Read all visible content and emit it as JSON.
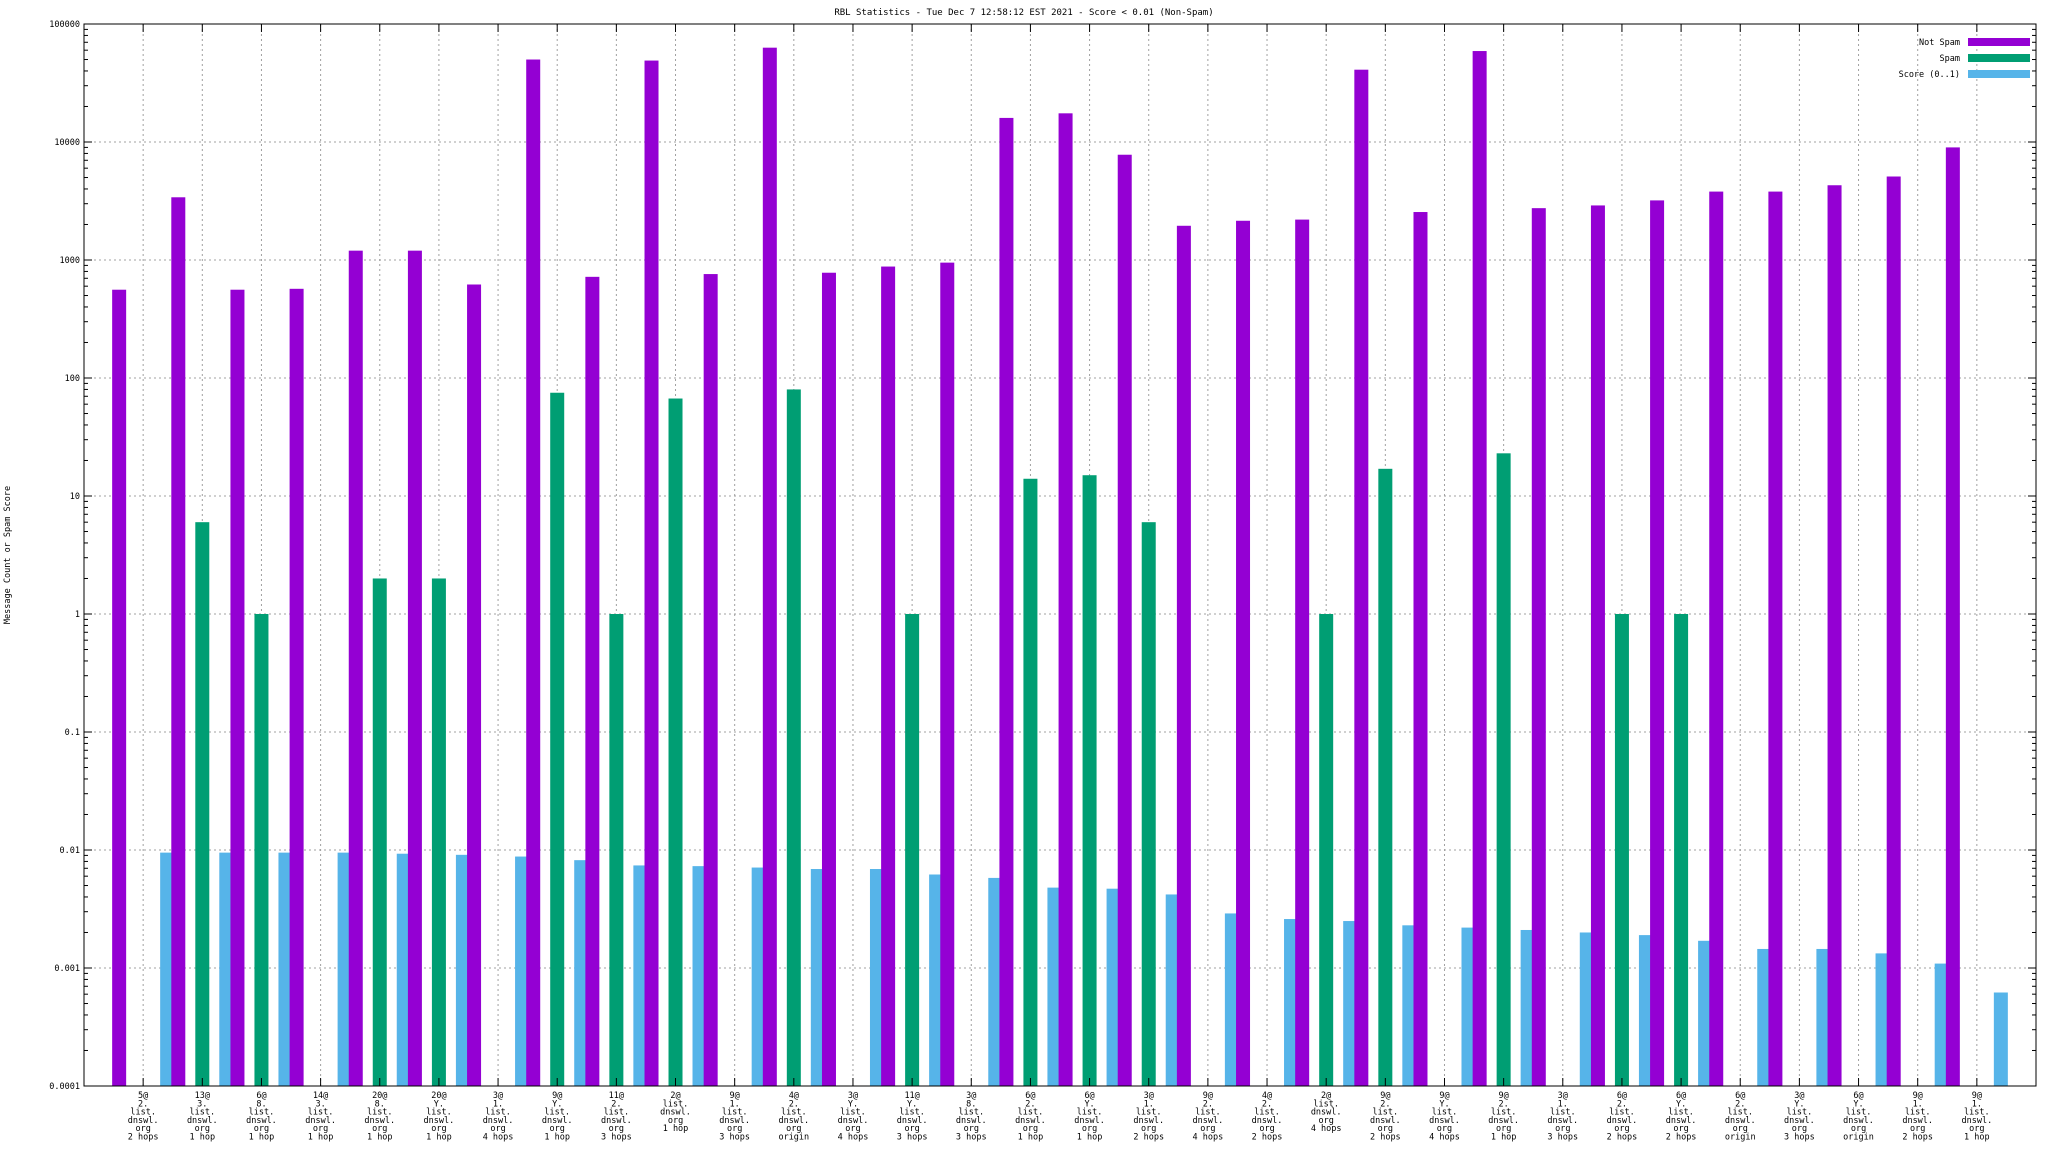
{
  "chart_data": {
    "type": "bar",
    "title": "RBL Statistics - Tue Dec  7 12:58:12 EST 2021 - Score < 0.01 (Non-Spam)",
    "xlabel": "",
    "ylabel": "Message Count or Spam Score",
    "yscale": "log",
    "ylim": [
      0.0001,
      100000
    ],
    "yticks": [
      "0.0001",
      "0.001",
      "0.01",
      "0.1",
      "1",
      "10",
      "100",
      "1000",
      "10000",
      "100000"
    ],
    "grid": true,
    "legend_position": "top-right",
    "categories": [
      [
        "5@",
        "2.",
        "list.",
        "dnswl.",
        "org",
        "2 hops"
      ],
      [
        "13@",
        "3.",
        "list.",
        "dnswl.",
        "org",
        "1 hop"
      ],
      [
        "6@",
        "8.",
        "list.",
        "dnswl.",
        "org",
        "1 hop"
      ],
      [
        "14@",
        "3.",
        "list.",
        "dnswl.",
        "org",
        "1 hop"
      ],
      [
        "20@",
        "8.",
        "list.",
        "dnswl.",
        "org",
        "1 hop"
      ],
      [
        "20@",
        "Y.",
        "list.",
        "dnswl.",
        "org",
        "1 hop"
      ],
      [
        "3@",
        "1.",
        "list.",
        "dnswl.",
        "org",
        "4 hops"
      ],
      [
        "9@",
        "Y.",
        "list.",
        "dnswl.",
        "org",
        "1 hop"
      ],
      [
        "11@",
        "2.",
        "list.",
        "dnswl.",
        "org",
        "3 hops"
      ],
      [
        "2@",
        "list.",
        "dnswl.",
        "org",
        "1 hop"
      ],
      [
        "9@",
        "1.",
        "list.",
        "dnswl.",
        "org",
        "3 hops"
      ],
      [
        "4@",
        "2.",
        "list.",
        "dnswl.",
        "org",
        "origin"
      ],
      [
        "3@",
        "Y.",
        "list.",
        "dnswl.",
        "org",
        "4 hops"
      ],
      [
        "11@",
        "Y.",
        "list.",
        "dnswl.",
        "org",
        "3 hops"
      ],
      [
        "3@",
        "8.",
        "list.",
        "dnswl.",
        "org",
        "3 hops"
      ],
      [
        "6@",
        "2.",
        "list.",
        "dnswl.",
        "org",
        "1 hop"
      ],
      [
        "6@",
        "Y.",
        "list.",
        "dnswl.",
        "org",
        "1 hop"
      ],
      [
        "3@",
        "1.",
        "list.",
        "dnswl.",
        "org",
        "2 hops"
      ],
      [
        "9@",
        "2.",
        "list.",
        "dnswl.",
        "org",
        "4 hops"
      ],
      [
        "4@",
        "2.",
        "list.",
        "dnswl.",
        "org",
        "2 hops"
      ],
      [
        "2@",
        "list.",
        "dnswl.",
        "org",
        "4 hops"
      ],
      [
        "9@",
        "2.",
        "list.",
        "dnswl.",
        "org",
        "2 hops"
      ],
      [
        "9@",
        "Y.",
        "list.",
        "dnswl.",
        "org",
        "4 hops"
      ],
      [
        "9@",
        "2.",
        "list.",
        "dnswl.",
        "org",
        "1 hop"
      ],
      [
        "3@",
        "1.",
        "list.",
        "dnswl.",
        "org",
        "3 hops"
      ],
      [
        "6@",
        "2.",
        "list.",
        "dnswl.",
        "org",
        "2 hops"
      ],
      [
        "6@",
        "Y.",
        "list.",
        "dnswl.",
        "org",
        "2 hops"
      ],
      [
        "6@",
        "2.",
        "list.",
        "dnswl.",
        "org",
        "origin"
      ],
      [
        "3@",
        "Y.",
        "list.",
        "dnswl.",
        "org",
        "3 hops"
      ],
      [
        "6@",
        "Y.",
        "list.",
        "dnswl.",
        "org",
        "origin"
      ],
      [
        "9@",
        "1.",
        "list.",
        "dnswl.",
        "org",
        "2 hops"
      ],
      [
        "9@",
        "1.",
        "list.",
        "dnswl.",
        "org",
        "1 hop"
      ]
    ],
    "series": [
      {
        "name": "Not Spam",
        "color": "#9400d3",
        "values": [
          560,
          3400,
          560,
          570,
          1200,
          1200,
          620,
          50000,
          720,
          49000,
          760,
          63000,
          780,
          880,
          950,
          16000,
          17500,
          7800,
          1950,
          2150,
          2200,
          41000,
          2550,
          59000,
          2750,
          2900,
          3200,
          3800,
          3800,
          4300,
          5100,
          9000
        ]
      },
      {
        "name": "Spam",
        "color": "#009e73",
        "values": [
          null,
          6,
          1,
          null,
          2,
          2,
          null,
          75,
          1,
          67,
          null,
          80,
          null,
          1,
          null,
          14,
          15,
          6,
          null,
          null,
          1,
          17,
          null,
          23,
          null,
          1,
          1,
          null,
          null,
          null,
          null,
          null
        ]
      },
      {
        "name": "Score (0..1)",
        "color": "#56b4e9",
        "values": [
          0.0095,
          0.0095,
          0.0095,
          0.0095,
          0.0093,
          0.0091,
          0.0088,
          0.0082,
          0.0074,
          0.0073,
          0.0071,
          0.0069,
          0.0069,
          0.0062,
          0.0058,
          0.0048,
          0.0047,
          0.0042,
          0.0029,
          0.0026,
          0.0025,
          0.0023,
          0.0022,
          0.0021,
          0.002,
          0.0019,
          0.0017,
          0.00145,
          0.00145,
          0.00133,
          0.00109,
          0.00062
        ]
      }
    ]
  }
}
